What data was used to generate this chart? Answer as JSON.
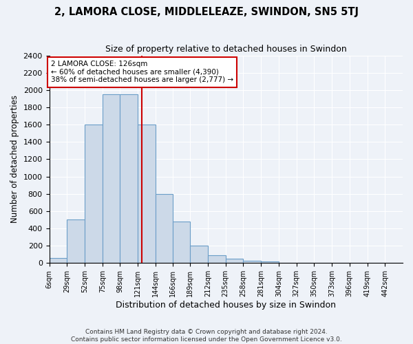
{
  "title": "2, LAMORA CLOSE, MIDDLELEAZE, SWINDON, SN5 5TJ",
  "subtitle": "Size of property relative to detached houses in Swindon",
  "xlabel": "Distribution of detached houses by size in Swindon",
  "ylabel": "Number of detached properties",
  "bar_color": "#ccd9e8",
  "bar_edge_color": "#6b9ec8",
  "background_color": "#eef2f8",
  "grid_color": "#ffffff",
  "annotation_text": "2 LAMORA CLOSE: 126sqm\n← 60% of detached houses are smaller (4,390)\n38% of semi-detached houses are larger (2,777) →",
  "annotation_box_color": "#ffffff",
  "annotation_box_edge_color": "#cc0000",
  "vline_x": 126,
  "vline_color": "#cc0000",
  "footnote": "Contains HM Land Registry data © Crown copyright and database right 2024.\nContains public sector information licensed under the Open Government Licence v3.0.",
  "bins": [
    6,
    29,
    52,
    75,
    98,
    121,
    144,
    166,
    189,
    212,
    235,
    258,
    281,
    304,
    327,
    350,
    373,
    396,
    419,
    442,
    465
  ],
  "counts": [
    60,
    500,
    1600,
    1950,
    1950,
    1600,
    800,
    480,
    200,
    90,
    50,
    30,
    20,
    0,
    0,
    0,
    0,
    0,
    0,
    0
  ],
  "ylim": [
    0,
    2400
  ],
  "yticks": [
    0,
    200,
    400,
    600,
    800,
    1000,
    1200,
    1400,
    1600,
    1800,
    2000,
    2200,
    2400
  ],
  "figsize": [
    6.0,
    5.0
  ],
  "dpi": 100
}
